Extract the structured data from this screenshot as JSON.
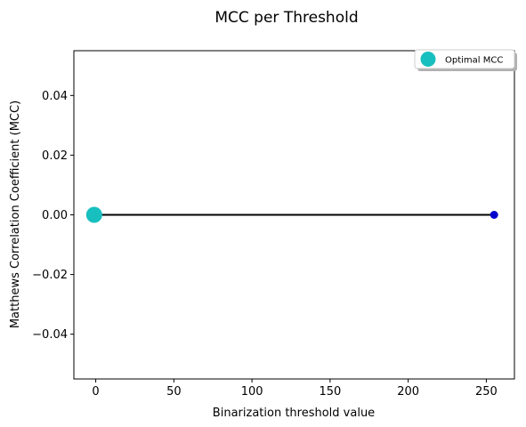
{
  "chart_data": {
    "type": "line",
    "title": "MCC per Threshold",
    "xlabel": "Binarization threshold value",
    "ylabel": "Matthews Correlation Coefficient (MCC)",
    "xlim": [
      -14,
      268
    ],
    "ylim": [
      -0.055,
      0.055
    ],
    "xticks": [
      0,
      50,
      100,
      150,
      200,
      250
    ],
    "yticks": [
      -0.04,
      -0.02,
      0.0,
      0.02,
      0.04
    ],
    "xtick_labels": [
      "0",
      "50",
      "100",
      "150",
      "200",
      "250"
    ],
    "ytick_labels": [
      "−0.04",
      "−0.02",
      "0.00",
      "0.02",
      "0.04"
    ],
    "series": [
      {
        "name": "MCC",
        "color": "#000000",
        "x": [
          -1,
          255
        ],
        "y": [
          0,
          0
        ]
      }
    ],
    "end_point": {
      "x": 255,
      "y": 0,
      "color": "#0000cc"
    },
    "optimal": {
      "name": "Optimal MCC",
      "x": -1,
      "y": 0,
      "color": "#17bfbf"
    },
    "legend": {
      "position": "top-right",
      "label": "Optimal MCC"
    },
    "grid": false
  }
}
